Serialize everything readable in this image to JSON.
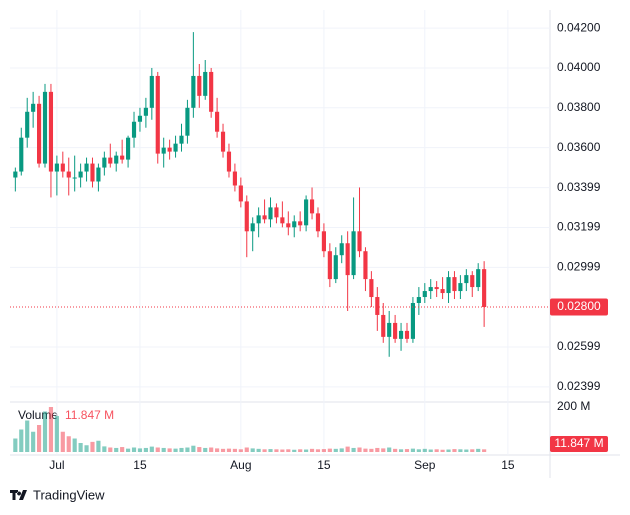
{
  "chart_data": {
    "type": "candlestick",
    "x": [
      -7,
      -6,
      -5,
      -4,
      -3,
      -2,
      -1,
      0,
      1,
      2,
      3,
      4,
      5,
      6,
      7,
      8,
      9,
      10,
      11,
      12,
      13,
      14,
      15,
      16,
      17,
      18,
      19,
      20,
      21,
      22,
      23,
      24,
      25,
      26,
      27,
      28,
      29,
      30,
      31,
      32,
      33,
      34,
      35,
      36,
      37,
      38,
      39,
      40,
      41,
      42,
      43,
      44,
      45,
      46,
      47,
      48,
      49,
      50,
      51,
      52,
      53,
      54,
      55,
      56,
      57,
      58,
      59,
      60,
      61,
      62,
      63,
      64,
      65,
      66,
      67,
      68,
      69,
      70,
      71,
      72
    ],
    "open": [
      0.0345,
      0.0348,
      0.0365,
      0.0378,
      0.0382,
      0.0352,
      0.0388,
      0.0348,
      0.0352,
      0.0348,
      0.0345,
      0.0345,
      0.0348,
      0.0352,
      0.0343,
      0.035,
      0.0355,
      0.0352,
      0.0356,
      0.0354,
      0.0365,
      0.0373,
      0.0376,
      0.038,
      0.0396,
      0.0357,
      0.036,
      0.0358,
      0.0362,
      0.0366,
      0.038,
      0.0396,
      0.0386,
      0.0398,
      0.0378,
      0.0368,
      0.0358,
      0.0348,
      0.0341,
      0.0333,
      0.0318,
      0.0322,
      0.0326,
      0.0324,
      0.033,
      0.0325,
      0.0322,
      0.032,
      0.0323,
      0.0321,
      0.0334,
      0.0327,
      0.0318,
      0.0308,
      0.0294,
      0.0306,
      0.0312,
      0.0296,
      0.0318,
      0.0308,
      0.0294,
      0.0285,
      0.0276,
      0.0265,
      0.0272,
      0.0264,
      0.0268,
      0.0264,
      0.0282,
      0.0285,
      0.0288,
      0.029,
      0.0289,
      0.0287,
      0.0295,
      0.0288,
      0.0292,
      0.0296,
      0.029,
      0.0299
    ],
    "high": [
      0.035,
      0.037,
      0.0385,
      0.0388,
      0.0386,
      0.0392,
      0.0392,
      0.0356,
      0.0358,
      0.0355,
      0.0356,
      0.0352,
      0.0355,
      0.0355,
      0.0352,
      0.0358,
      0.0362,
      0.0358,
      0.0364,
      0.0366,
      0.0378,
      0.038,
      0.0385,
      0.04,
      0.0398,
      0.0365,
      0.0364,
      0.0366,
      0.0372,
      0.0384,
      0.0418,
      0.0402,
      0.0404,
      0.04,
      0.0385,
      0.0372,
      0.0362,
      0.0352,
      0.0345,
      0.0336,
      0.0325,
      0.033,
      0.0334,
      0.0335,
      0.0332,
      0.0333,
      0.0328,
      0.0326,
      0.0328,
      0.0336,
      0.034,
      0.033,
      0.0322,
      0.0312,
      0.031,
      0.0316,
      0.0318,
      0.0335,
      0.034,
      0.031,
      0.0298,
      0.029,
      0.0282,
      0.0278,
      0.0276,
      0.0272,
      0.0272,
      0.0285,
      0.029,
      0.0292,
      0.0294,
      0.0293,
      0.0295,
      0.0298,
      0.0298,
      0.0296,
      0.0299,
      0.0298,
      0.0302,
      0.0303
    ],
    "low": [
      0.0338,
      0.0346,
      0.036,
      0.037,
      0.035,
      0.035,
      0.0335,
      0.0336,
      0.0345,
      0.0336,
      0.0338,
      0.034,
      0.0343,
      0.034,
      0.0338,
      0.0346,
      0.035,
      0.0348,
      0.0352,
      0.035,
      0.036,
      0.0368,
      0.037,
      0.0374,
      0.0352,
      0.035,
      0.0354,
      0.0355,
      0.0358,
      0.0362,
      0.0375,
      0.038,
      0.0384,
      0.0375,
      0.0365,
      0.0355,
      0.0345,
      0.0338,
      0.033,
      0.0305,
      0.0308,
      0.0315,
      0.0322,
      0.032,
      0.0322,
      0.032,
      0.0316,
      0.0315,
      0.0318,
      0.0318,
      0.0324,
      0.0315,
      0.0305,
      0.029,
      0.0292,
      0.0302,
      0.0278,
      0.0294,
      0.0305,
      0.0288,
      0.028,
      0.0268,
      0.0262,
      0.0255,
      0.0262,
      0.0258,
      0.0262,
      0.0262,
      0.0276,
      0.0282,
      0.0284,
      0.0285,
      0.0284,
      0.0282,
      0.0284,
      0.0284,
      0.0288,
      0.0285,
      0.0288,
      0.027
    ],
    "close": [
      0.0348,
      0.0365,
      0.0378,
      0.0382,
      0.0352,
      0.0388,
      0.0348,
      0.0352,
      0.0348,
      0.0345,
      0.0345,
      0.0348,
      0.0352,
      0.0343,
      0.035,
      0.0355,
      0.0352,
      0.0356,
      0.0354,
      0.0365,
      0.0373,
      0.0376,
      0.038,
      0.0396,
      0.0357,
      0.036,
      0.0358,
      0.0362,
      0.0366,
      0.038,
      0.0396,
      0.0386,
      0.0398,
      0.0378,
      0.0368,
      0.0358,
      0.0348,
      0.0341,
      0.0333,
      0.0318,
      0.0322,
      0.0326,
      0.0324,
      0.033,
      0.0325,
      0.0322,
      0.032,
      0.0323,
      0.0321,
      0.0334,
      0.0327,
      0.0318,
      0.0308,
      0.0294,
      0.0306,
      0.0312,
      0.0296,
      0.0318,
      0.0308,
      0.0294,
      0.0285,
      0.0276,
      0.0265,
      0.0272,
      0.0264,
      0.0268,
      0.0264,
      0.0282,
      0.0285,
      0.0288,
      0.029,
      0.0289,
      0.0287,
      0.0295,
      0.0288,
      0.0292,
      0.0296,
      0.029,
      0.0299,
      0.028
    ],
    "up_color": "#089981",
    "down_color": "#f23645",
    "xlim": [
      -7.9,
      83.1
    ],
    "xticks": [
      {
        "value": 0,
        "label": "Jul"
      },
      {
        "value": 14,
        "label": "15"
      },
      {
        "value": 31,
        "label": "Aug"
      },
      {
        "value": 45,
        "label": "15"
      },
      {
        "value": 62,
        "label": "Sep"
      },
      {
        "value": 76,
        "label": "15"
      }
    ],
    "ylim": [
      0.02323,
      0.04291
    ],
    "yticks": [
      {
        "value": 0.042,
        "label": "0.04200"
      },
      {
        "value": 0.04,
        "label": "0.04000"
      },
      {
        "value": 0.038,
        "label": "0.03800"
      },
      {
        "value": 0.036,
        "label": "0.03600"
      },
      {
        "value": 0.03399,
        "label": "0.03399"
      },
      {
        "value": 0.03199,
        "label": "0.03199"
      },
      {
        "value": 0.02999,
        "label": "0.02999"
      },
      {
        "value": 0.02599,
        "label": "0.02599"
      },
      {
        "value": 0.02399,
        "label": "0.02399"
      }
    ],
    "last_price_label": "0.02800",
    "grid": true,
    "volume": {
      "title": "Volume",
      "values": [
        60,
        100,
        140,
        90,
        120,
        180,
        200,
        160,
        90,
        70,
        60,
        40,
        30,
        45,
        50,
        25,
        20,
        18,
        22,
        15,
        20,
        16,
        18,
        24,
        20,
        18,
        16,
        15,
        18,
        20,
        28,
        22,
        18,
        20,
        16,
        14,
        15,
        14,
        12,
        20,
        16,
        14,
        12,
        13,
        12,
        11,
        12,
        10,
        12,
        11,
        14,
        12,
        13,
        15,
        14,
        16,
        24,
        18,
        20,
        15,
        14,
        18,
        16,
        20,
        14,
        12,
        13,
        15,
        12,
        14,
        11,
        12,
        10,
        11,
        13,
        12,
        11,
        12,
        14,
        11.847
      ],
      "last_label": "11.847 M",
      "vlim": [
        0,
        200
      ],
      "vticks": [
        {
          "value": 200,
          "label": "200 M"
        }
      ]
    },
    "brand": "TradingView"
  }
}
